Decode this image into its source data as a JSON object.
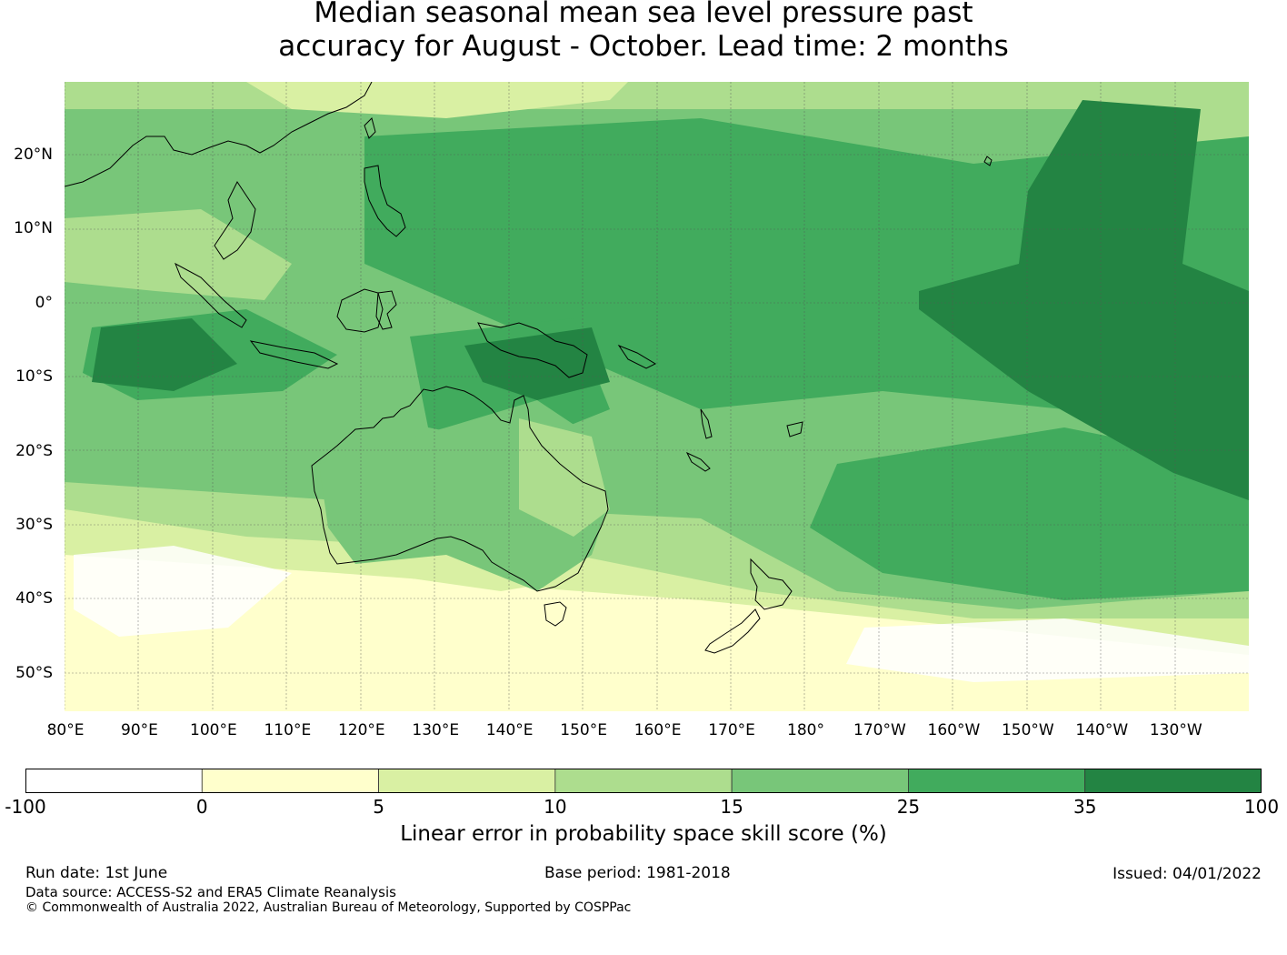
{
  "title_line1": "Median seasonal mean sea level pressure past",
  "title_line2": "accuracy for August - October. Lead time: 2 months",
  "map": {
    "lat_labels": [
      "20°N",
      "10°N",
      "0°",
      "10°S",
      "20°S",
      "30°S",
      "40°S",
      "50°S"
    ],
    "lon_labels": [
      "80°E",
      "90°E",
      "100°E",
      "110°E",
      "120°E",
      "130°E",
      "140°E",
      "150°E",
      "160°E",
      "170°E",
      "180°",
      "170°W",
      "160°W",
      "150°W",
      "140°W",
      "130°W"
    ]
  },
  "colorbar": {
    "ticks": [
      "-100",
      "0",
      "5",
      "10",
      "15",
      "25",
      "35",
      "100"
    ],
    "colors": [
      "#ffffff",
      "#ffffcc",
      "#d9f0a3",
      "#addd8e",
      "#78c679",
      "#41ab5d",
      "#238443"
    ],
    "label": "Linear error in probability space skill score (%)"
  },
  "footer": {
    "run_date": "Run date: 1st June",
    "base_period": "Base period: 1981-2018",
    "issued": "Issued: 04/01/2022",
    "data_source": "Data source: ACCESS-S2 and ERA5 Climate Reanalysis",
    "copyright": "© Commonwealth of Australia 2022, Australian Bureau of Meteorology, Supported by COSPPac"
  }
}
